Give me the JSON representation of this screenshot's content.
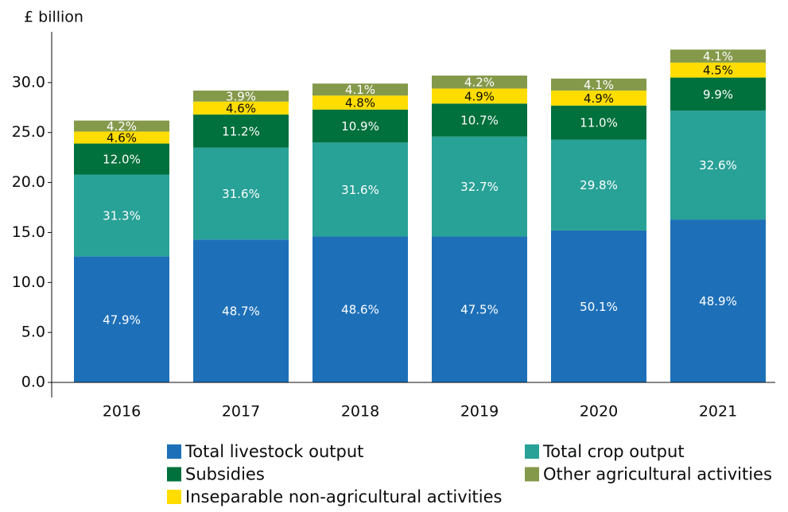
{
  "chart_data": {
    "type": "stacked_bar",
    "y_label": "£ billion",
    "categories": [
      "2016",
      "2017",
      "2018",
      "2019",
      "2020",
      "2021"
    ],
    "series": [
      {
        "name": "Total livestock output",
        "color": "#1d70b8",
        "label_color": "#ffffff",
        "values": [
          12.6,
          14.3,
          14.6,
          14.6,
          15.2,
          16.3
        ],
        "share_labels": [
          "47.9%",
          "48.7%",
          "48.6%",
          "47.5%",
          "50.1%",
          "48.9%"
        ]
      },
      {
        "name": "Total crop output",
        "color": "#28a197",
        "label_color": "#ffffff",
        "values": [
          8.2,
          9.2,
          9.4,
          10.0,
          9.1,
          10.9
        ],
        "share_labels": [
          "31.3%",
          "31.6%",
          "31.6%",
          "32.7%",
          "29.8%",
          "32.6%"
        ]
      },
      {
        "name": "Subsidies",
        "color": "#00703c",
        "label_color": "#ffffff",
        "values": [
          3.1,
          3.3,
          3.3,
          3.3,
          3.4,
          3.3
        ],
        "share_labels": [
          "12.0%",
          "11.2%",
          "10.9%",
          "10.7%",
          "11.0%",
          "9.9%"
        ]
      },
      {
        "name": "Inseparable non-agricultural activities",
        "color": "#ffdd00",
        "label_color": "#0b0c0c",
        "values": [
          1.2,
          1.3,
          1.4,
          1.5,
          1.5,
          1.5
        ],
        "share_labels": [
          "4.6%",
          "4.6%",
          "4.8%",
          "4.9%",
          "4.9%",
          "4.5%"
        ]
      },
      {
        "name": "Other agricultural activities",
        "color": "#85994b",
        "label_color": "#ffffff",
        "values": [
          1.1,
          1.1,
          1.2,
          1.3,
          1.2,
          1.3
        ],
        "share_labels": [
          "4.2%",
          "3.9%",
          "4.1%",
          "4.2%",
          "4.1%",
          "4.1%"
        ]
      }
    ],
    "ylim": [
      0,
      35
    ],
    "yticks": [
      {
        "value": 0,
        "label": "0.0"
      },
      {
        "value": 5,
        "label": "5.0"
      },
      {
        "value": 10,
        "label": "10.0"
      },
      {
        "value": 15,
        "label": "15.0"
      },
      {
        "value": 20,
        "label": "20.0"
      },
      {
        "value": 25,
        "label": "25.0"
      },
      {
        "value": 30,
        "label": "30.0"
      }
    ]
  }
}
